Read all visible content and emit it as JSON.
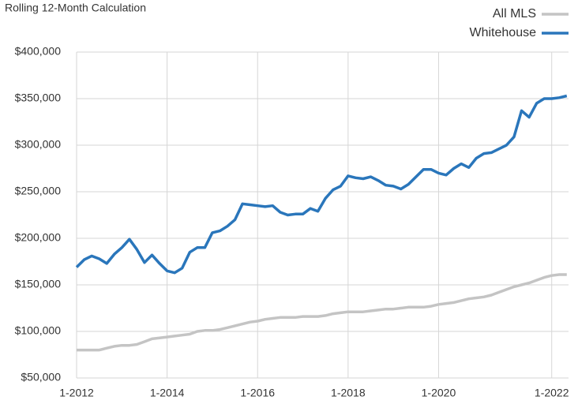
{
  "chart_data": {
    "type": "line",
    "title": "Rolling 12-Month Calculation",
    "categories": [
      "1-2012",
      null,
      null,
      null,
      null,
      null,
      null,
      null,
      null,
      null,
      null,
      null,
      "1-2014",
      null,
      null,
      null,
      null,
      null,
      null,
      null,
      null,
      null,
      null,
      null,
      "1-2016",
      null,
      null,
      null,
      null,
      null,
      null,
      null,
      null,
      null,
      null,
      null,
      "1-2018",
      null,
      null,
      null,
      null,
      null,
      null,
      null,
      null,
      null,
      null,
      null,
      "1-2020",
      null,
      null,
      null,
      null,
      null,
      null,
      null,
      null,
      null,
      null,
      null,
      null,
      null,
      null,
      "1-2022",
      null,
      null
    ],
    "series": [
      {
        "name": "All MLS",
        "color": "#c4c4c4",
        "values": [
          80000,
          80000,
          80000,
          80000,
          82000,
          84000,
          85000,
          85000,
          86000,
          89000,
          92000,
          93000,
          94000,
          95000,
          96000,
          97000,
          100000,
          101000,
          101000,
          102000,
          104000,
          106000,
          108000,
          110000,
          111000,
          113000,
          114000,
          115000,
          115000,
          115000,
          116000,
          116000,
          116000,
          117000,
          119000,
          120000,
          121000,
          121000,
          121000,
          122000,
          123000,
          124000,
          124000,
          125000,
          126000,
          126000,
          126000,
          127000,
          129000,
          130000,
          131000,
          133000,
          135000,
          136000,
          137000,
          139000,
          142000,
          145000,
          148000,
          150000,
          152000,
          155000,
          158000,
          160000,
          161000,
          161000
        ]
      },
      {
        "name": "Whitehouse",
        "color": "#2a76bb",
        "values": [
          169000,
          177000,
          181000,
          178000,
          173000,
          183000,
          190000,
          199000,
          188000,
          174000,
          182000,
          173000,
          165000,
          163000,
          168000,
          185000,
          190000,
          190000,
          206000,
          208000,
          213000,
          220000,
          237000,
          236000,
          235000,
          234000,
          235000,
          228000,
          225000,
          226000,
          226000,
          232000,
          229000,
          243000,
          252000,
          256000,
          267000,
          265000,
          264000,
          266000,
          262000,
          257000,
          256000,
          253000,
          258000,
          266000,
          274000,
          274000,
          270000,
          268000,
          275000,
          280000,
          276000,
          286000,
          291000,
          292000,
          296000,
          300000,
          309000,
          337000,
          330000,
          345000,
          350000,
          350000,
          351000,
          353000
        ]
      }
    ],
    "ylim": [
      50000,
      400000
    ],
    "yticks": [
      {
        "value": 50000,
        "label": "$50,000"
      },
      {
        "value": 100000,
        "label": "$100,000"
      },
      {
        "value": 150000,
        "label": "$150,000"
      },
      {
        "value": 200000,
        "label": "$200,000"
      },
      {
        "value": 250000,
        "label": "$250,000"
      },
      {
        "value": 300000,
        "label": "$300,000"
      },
      {
        "value": 350000,
        "label": "$350,000"
      },
      {
        "value": 400000,
        "label": "$400,000"
      }
    ],
    "grid": true,
    "legend": "top-right"
  }
}
